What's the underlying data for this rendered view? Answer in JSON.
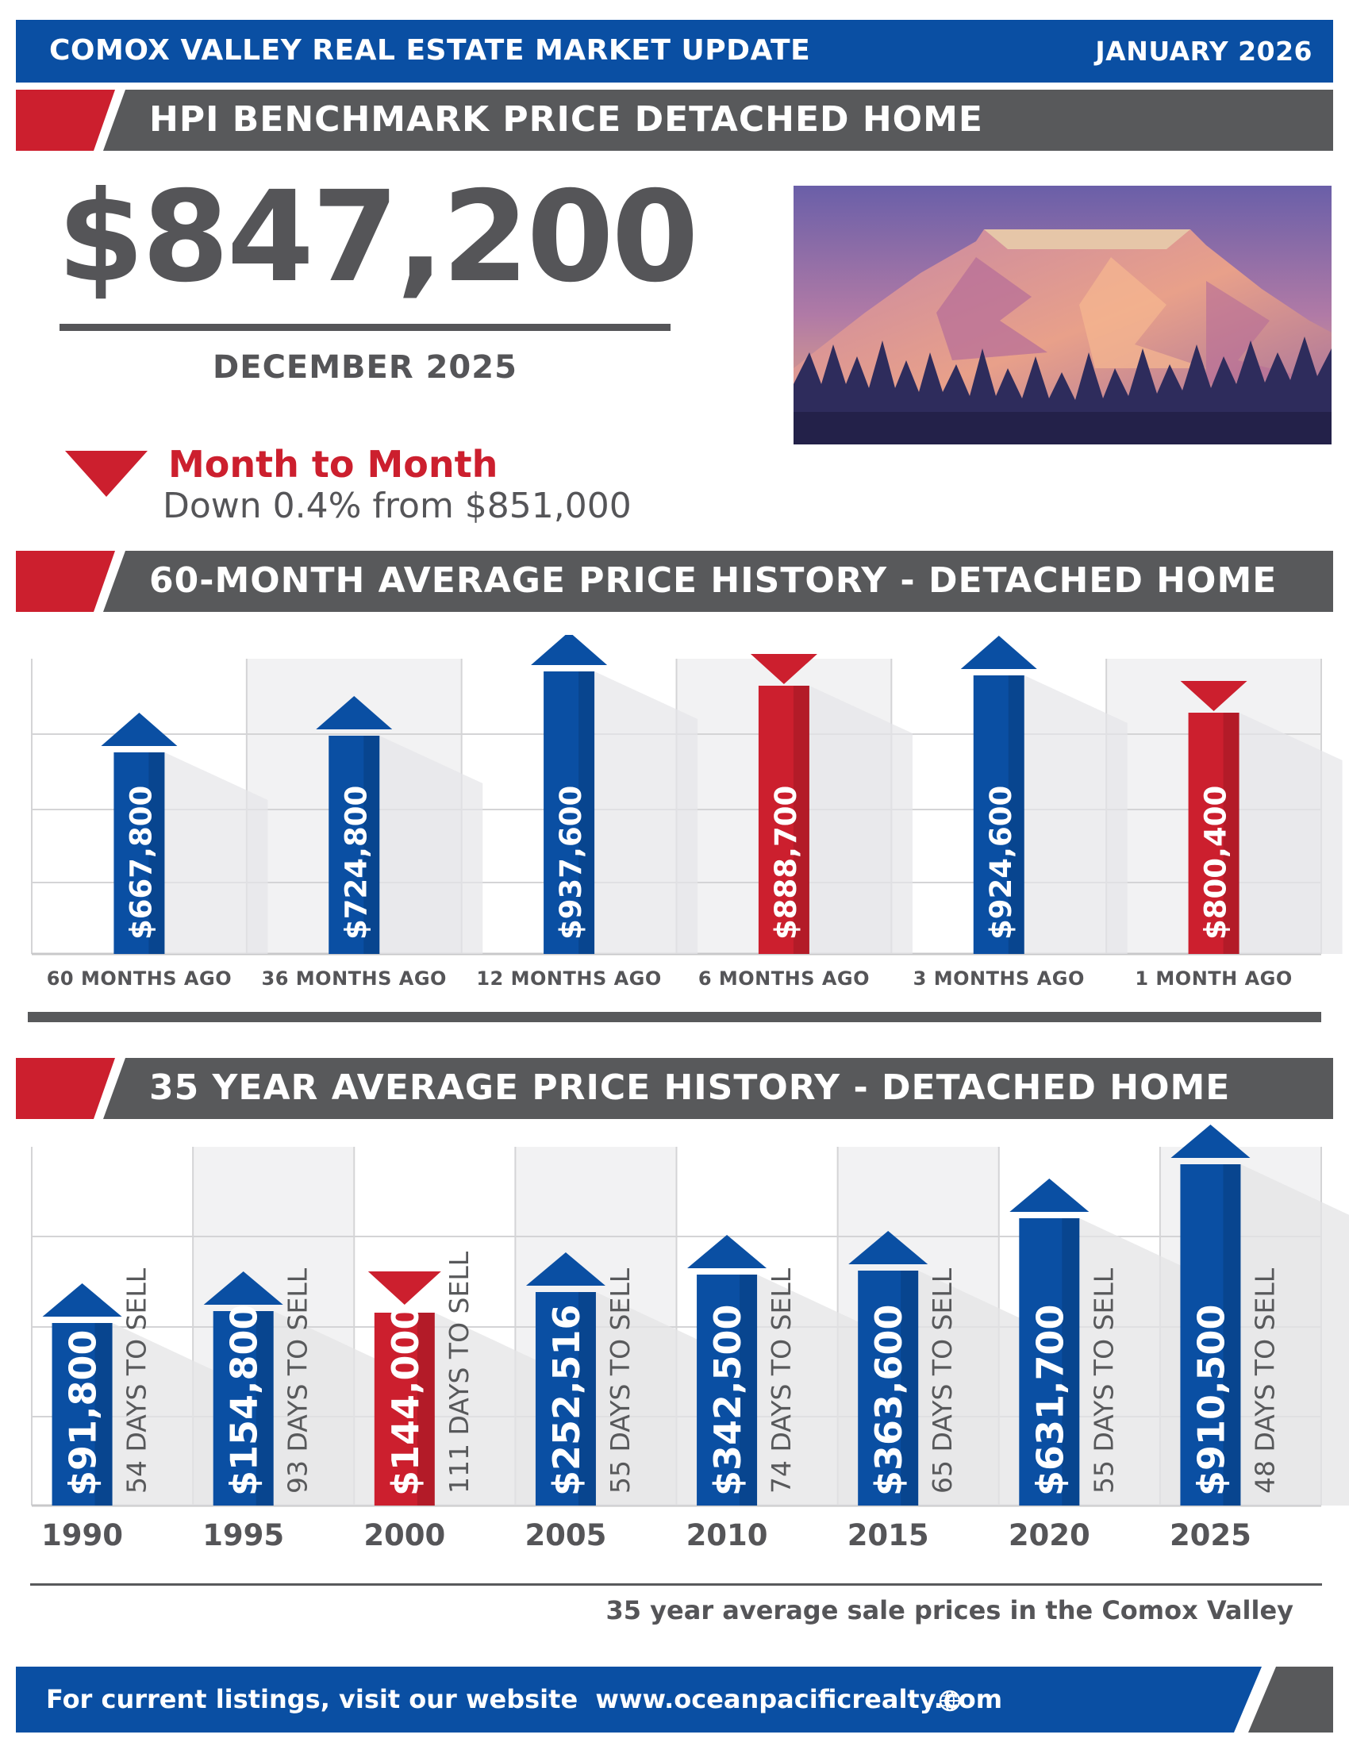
{
  "header": {
    "title": "COMOX VALLEY REAL ESTATE MARKET UPDATE",
    "date": "JANUARY 2026"
  },
  "hpi": {
    "section_title": "HPI BENCHMARK PRICE DETACHED HOME",
    "price": "$847,200",
    "month": "DECEMBER 2025",
    "change_title": "Month to Month",
    "change_text": "Down 0.4% from $851,000",
    "direction": "down"
  },
  "colors": {
    "blue": "#0a4fa3",
    "red": "#cc1f2e",
    "gray": "#58595b"
  },
  "icons": {
    "direction": "triangle-down-icon",
    "website": "globe-icon",
    "image": "mountain-illustration"
  },
  "chart_data": [
    {
      "type": "bar",
      "title": "60-MONTH AVERAGE PRICE HISTORY - DETACHED HOME",
      "categories": [
        "60 MONTHS AGO",
        "36 MONTHS AGO",
        "12 MONTHS AGO",
        "6 MONTHS AGO",
        "3 MONTHS AGO",
        "1 MONTH AGO"
      ],
      "values": [
        667800,
        724800,
        937600,
        888700,
        924600,
        800400
      ],
      "labels": [
        "$667,800",
        "$724,800",
        "$937,600",
        "$888,700",
        "$924,600",
        "$800,400"
      ],
      "trend": [
        "up",
        "up",
        "up",
        "down",
        "up",
        "down"
      ],
      "grid": true
    },
    {
      "type": "bar",
      "title": "35 YEAR AVERAGE PRICE HISTORY - DETACHED HOME",
      "categories": [
        "1990",
        "1995",
        "2000",
        "2005",
        "2010",
        "2015",
        "2020",
        "2025"
      ],
      "values": [
        91800,
        154800,
        144000,
        252516,
        342500,
        363600,
        631700,
        910500
      ],
      "labels": [
        "$91,800",
        "$154,800",
        "$144,000",
        "$252,516",
        "$342,500",
        "$363,600",
        "$631,700",
        "$910,500"
      ],
      "days_to_sell": [
        "54 DAYS TO SELL",
        "93 DAYS TO SELL",
        "111 DAYS TO SELL",
        "55 DAYS TO SELL",
        "74 DAYS TO SELL",
        "65 DAYS TO SELL",
        "55 DAYS TO SELL",
        "48 DAYS TO SELL"
      ],
      "trend": [
        "up",
        "up",
        "down",
        "up",
        "up",
        "up",
        "up",
        "up"
      ],
      "grid": true,
      "note": "35 year average sale prices in the Comox Valley"
    }
  ],
  "footer": {
    "text": "For current listings, visit our website",
    "url": "www.oceanpacificrealty.com"
  }
}
